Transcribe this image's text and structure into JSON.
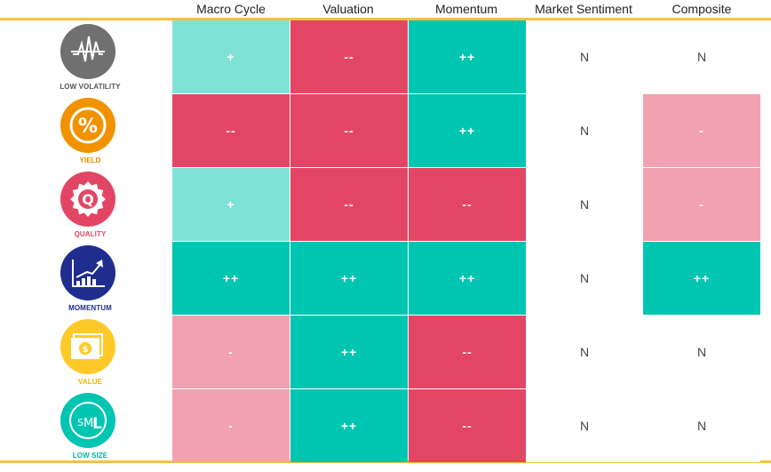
{
  "columns": [
    "Macro Cycle",
    "Valuation",
    "Momentum",
    "Market Sentiment",
    "Composite"
  ],
  "colors": {
    "strong_positive": "#00c5b0",
    "positive": "#7fe2d7",
    "strong_negative": "#e34664",
    "negative": "#f2a1b1",
    "neutral": "#ffffff",
    "divider": "#f6c13d"
  },
  "factors": [
    {
      "name": "LOW VOLATILITY",
      "icon": "low-volatility-icon",
      "icon_color": "#707070",
      "label_color": "#555555"
    },
    {
      "name": "YIELD",
      "icon": "yield-percent-icon",
      "icon_color": "#f29200",
      "label_color": "#ec8c00"
    },
    {
      "name": "QUALITY",
      "icon": "quality-badge-icon",
      "icon_color": "#e34664",
      "label_color": "#e34664"
    },
    {
      "name": "MOMENTUM",
      "icon": "momentum-chart-icon",
      "icon_color": "#1f2d8f",
      "label_color": "#1f2d8f"
    },
    {
      "name": "VALUE",
      "icon": "value-dollar-icon",
      "icon_color": "#ffca28",
      "label_color": "#f2b400"
    },
    {
      "name": "LOW SIZE",
      "icon": "low-size-sml-icon",
      "icon_color": "#00c5b0",
      "label_color": "#00b3a0"
    }
  ],
  "chart_data": {
    "type": "heatmap",
    "x": [
      "Macro Cycle",
      "Valuation",
      "Momentum",
      "Market Sentiment",
      "Composite"
    ],
    "y": [
      "LOW VOLATILITY",
      "YIELD",
      "QUALITY",
      "MOMENTUM",
      "VALUE",
      "LOW SIZE"
    ],
    "cells": [
      [
        "+",
        "--",
        "++",
        "N",
        "N"
      ],
      [
        "--",
        "--",
        "++",
        "N",
        "-"
      ],
      [
        "+",
        "--",
        "--",
        "N",
        "-"
      ],
      [
        "++",
        "++",
        "++",
        "N",
        "++"
      ],
      [
        "-",
        "++",
        "--",
        "N",
        "N"
      ],
      [
        "-",
        "++",
        "--",
        "N",
        "N"
      ]
    ]
  }
}
